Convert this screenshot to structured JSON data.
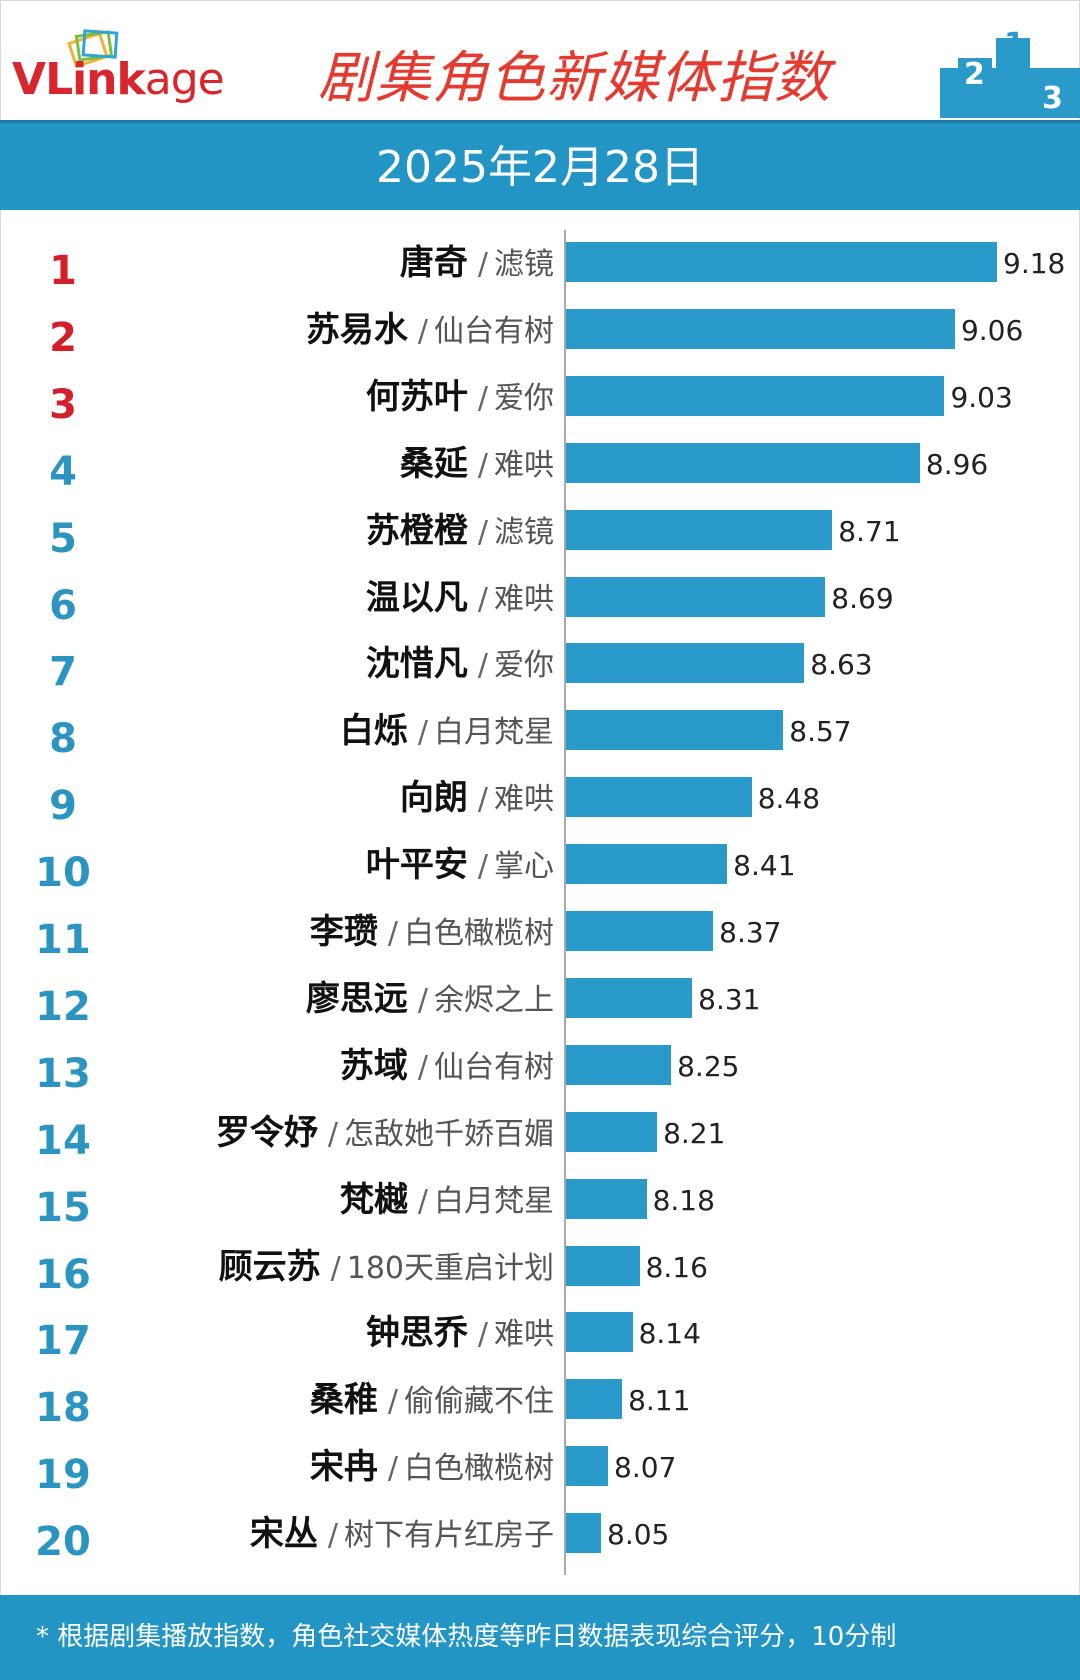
{
  "header": {
    "logo_text_v": "V",
    "logo_text_link": "Link",
    "logo_text_age": "age",
    "title": "剧集角色新媒体指数",
    "podium_labels": [
      "2",
      "1",
      "3"
    ]
  },
  "date": "2025年2月28日",
  "footer": {
    "note": "* 根据剧集播放指数，角色社交媒体热度等昨日数据表现综合评分，10分制"
  },
  "colors": {
    "accent": "#2395c4",
    "bar": "#2a9acb",
    "title": "#e43a2f",
    "rank_top": "#d31f2a",
    "rank": "#2b94c1"
  },
  "chart_data": {
    "type": "bar",
    "orientation": "horizontal",
    "title": "剧集角色新媒体指数",
    "categories": [
      {
        "rank": "1",
        "name": "唐奇",
        "drama": "滤镜"
      },
      {
        "rank": "2",
        "name": "苏易水",
        "drama": "仙台有树"
      },
      {
        "rank": "3",
        "name": "何苏叶",
        "drama": "爱你"
      },
      {
        "rank": "4",
        "name": "桑延",
        "drama": "难哄"
      },
      {
        "rank": "5",
        "name": "苏橙橙",
        "drama": "滤镜"
      },
      {
        "rank": "6",
        "name": "温以凡",
        "drama": "难哄"
      },
      {
        "rank": "7",
        "name": "沈惜凡",
        "drama": "爱你"
      },
      {
        "rank": "8",
        "name": "白烁",
        "drama": "白月梵星"
      },
      {
        "rank": "9",
        "name": "向朗",
        "drama": "难哄"
      },
      {
        "rank": "10",
        "name": "叶平安",
        "drama": "掌心"
      },
      {
        "rank": "11",
        "name": "李瓒",
        "drama": "白色橄榄树"
      },
      {
        "rank": "12",
        "name": "廖思远",
        "drama": "余烬之上"
      },
      {
        "rank": "13",
        "name": "苏域",
        "drama": "仙台有树"
      },
      {
        "rank": "14",
        "name": "罗令妤",
        "drama": "怎敌她千娇百媚"
      },
      {
        "rank": "15",
        "name": "梵樾",
        "drama": "白月梵星"
      },
      {
        "rank": "16",
        "name": "顾云苏",
        "drama": "180天重启计划"
      },
      {
        "rank": "17",
        "name": "钟思乔",
        "drama": "难哄"
      },
      {
        "rank": "18",
        "name": "桑稚",
        "drama": "偷偷藏不住"
      },
      {
        "rank": "19",
        "name": "宋冉",
        "drama": "白色橄榄树"
      },
      {
        "rank": "20",
        "name": "宋丛",
        "drama": "树下有片红房子"
      }
    ],
    "values": [
      9.18,
      9.06,
      9.03,
      8.96,
      8.71,
      8.69,
      8.63,
      8.57,
      8.48,
      8.41,
      8.37,
      8.31,
      8.25,
      8.21,
      8.18,
      8.16,
      8.14,
      8.11,
      8.07,
      8.05
    ],
    "value_labels": [
      "9.18",
      "9.06",
      "9.03",
      "8.96",
      "8.71",
      "8.69",
      "8.63",
      "8.57",
      "8.48",
      "8.41",
      "8.37",
      "8.31",
      "8.25",
      "8.21",
      "8.18",
      "8.16",
      "8.14",
      "8.11",
      "8.07",
      "8.05"
    ],
    "xlim": [
      7.95,
      9.18
    ],
    "grid": false,
    "legend": "none"
  }
}
